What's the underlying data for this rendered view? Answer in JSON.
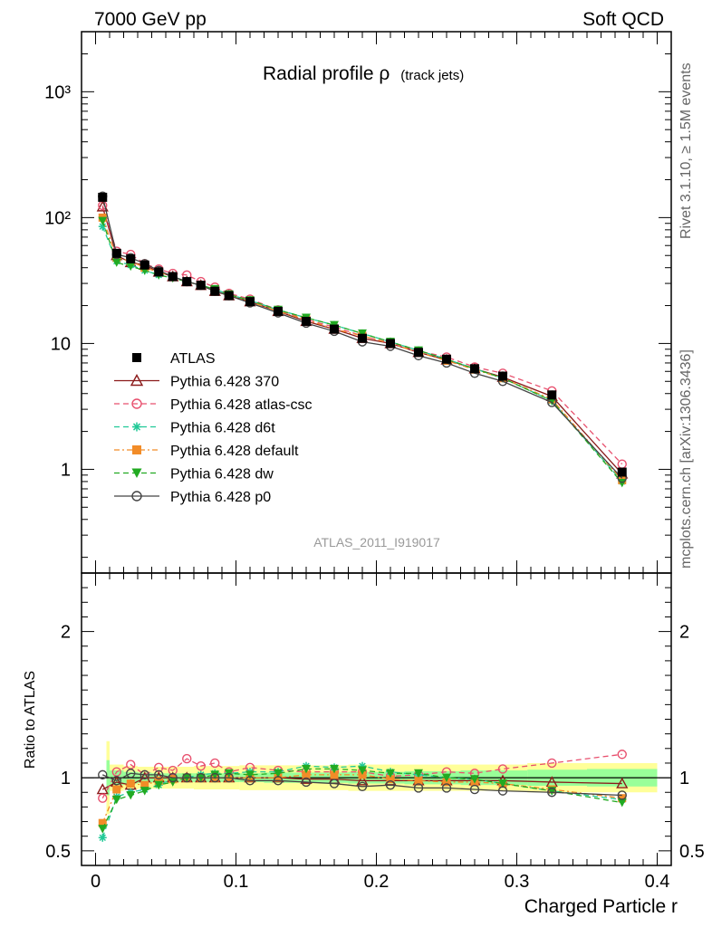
{
  "header": {
    "left": "7000 GeV pp",
    "right": "Soft QCD"
  },
  "side_text": {
    "top": "Rivet 3.1.10, ≥ 1.5M events",
    "bottom": "mcplots.cern.ch [arXiv:1306.3436]"
  },
  "chart_data": [
    {
      "type": "line",
      "title": "Radial profile ρ",
      "title_suffix": "(track jets)",
      "xlabel": "Charged Particle r",
      "ylabel": "",
      "yscale": "log",
      "ylim": [
        0.15,
        3000
      ],
      "xlim": [
        -0.01,
        0.41
      ],
      "y_tick_labels": [
        "1",
        "10",
        "10²",
        "10³"
      ],
      "watermark": "ATLAS_2011_I919017",
      "legend_position": "middle-left",
      "x": [
        0.005,
        0.015,
        0.025,
        0.035,
        0.045,
        0.055,
        0.065,
        0.075,
        0.085,
        0.095,
        0.11,
        0.13,
        0.15,
        0.17,
        0.19,
        0.21,
        0.23,
        0.25,
        0.27,
        0.29,
        0.325,
        0.375
      ],
      "series": [
        {
          "name": "ATLAS",
          "color": "#000000",
          "marker": "square",
          "dash": "none",
          "values": [
            145,
            52,
            47,
            42,
            37,
            34,
            31,
            29,
            26,
            24,
            21.5,
            18,
            15,
            13,
            11,
            10,
            8.5,
            7.5,
            6.3,
            5.5,
            3.9,
            0.95
          ]
        },
        {
          "name": "Pythia 6.428 370",
          "color": "#8b1a1a",
          "marker": "triangle-open",
          "dash": "solid",
          "values": [
            122,
            50,
            44,
            42,
            37,
            34,
            31,
            29,
            26,
            24,
            21.5,
            18,
            15,
            13,
            11,
            10,
            8.5,
            7.4,
            6.3,
            5.4,
            3.8,
            0.92
          ]
        },
        {
          "name": "Pythia 6.428 atlas-csc",
          "color": "#e8506e",
          "marker": "circle-open",
          "dash": "6,4",
          "values": [
            125,
            54,
            51,
            43,
            39,
            36,
            35,
            31,
            28,
            25,
            22.5,
            18.5,
            15.5,
            13.5,
            11.5,
            10.1,
            8.7,
            7.8,
            6.5,
            5.8,
            4.2,
            1.1
          ]
        },
        {
          "name": "Pythia 6.428 d6t",
          "color": "#20c997",
          "marker": "star",
          "dash": "6,4",
          "values": [
            85,
            45,
            42,
            38,
            35,
            34,
            31,
            29,
            27,
            24.5,
            22,
            18.5,
            16,
            14,
            12,
            10.3,
            8.8,
            7.5,
            6.3,
            5.3,
            3.5,
            0.8
          ]
        },
        {
          "name": "Pythia 6.428 default",
          "color": "#f28c28",
          "marker": "square",
          "dash": "6,3,2,3",
          "values": [
            100,
            48,
            45,
            40,
            37,
            34,
            31,
            29,
            26,
            24,
            21.5,
            18,
            15.5,
            13,
            11.5,
            10,
            8.5,
            7.3,
            6.2,
            5.3,
            3.6,
            0.82
          ]
        },
        {
          "name": "Pythia 6.428 dw",
          "color": "#22aa22",
          "marker": "triangle-down",
          "dash": "6,4",
          "values": [
            94,
            44,
            41,
            38,
            35,
            33,
            31,
            29,
            27,
            24.5,
            22,
            18.5,
            16,
            14,
            12,
            10.3,
            8.8,
            7.5,
            6.3,
            5.3,
            3.5,
            0.78
          ]
        },
        {
          "name": "Pythia 6.428 p0",
          "color": "#444444",
          "marker": "circle-open",
          "dash": "solid",
          "values": [
            148,
            51,
            48,
            43,
            38,
            34,
            31,
            29,
            26,
            24,
            21,
            17.5,
            14.5,
            12.5,
            10.3,
            9.5,
            8,
            7,
            5.8,
            5,
            3.4,
            0.85
          ]
        }
      ]
    },
    {
      "type": "line",
      "title": "",
      "xlabel": "Charged Particle r",
      "ylabel": "Ratio to ATLAS",
      "ylim": [
        0.4,
        2.4
      ],
      "xlim": [
        -0.01,
        0.41
      ],
      "x_tick_labels": [
        "0",
        "0.1",
        "0.2",
        "0.3",
        "0.4"
      ],
      "y_tick_labels": [
        "0.5",
        "1",
        "2"
      ],
      "band_stat": [
        0.12,
        0.05,
        0.04,
        0.035,
        0.03,
        0.03,
        0.03,
        0.03,
        0.03,
        0.03,
        0.03,
        0.035,
        0.035,
        0.035,
        0.04,
        0.04,
        0.045,
        0.045,
        0.05,
        0.05,
        0.055,
        0.06
      ],
      "band_total": [
        0.25,
        0.09,
        0.08,
        0.075,
        0.075,
        0.075,
        0.075,
        0.08,
        0.08,
        0.08,
        0.085,
        0.085,
        0.085,
        0.085,
        0.09,
        0.09,
        0.09,
        0.09,
        0.09,
        0.09,
        0.1,
        0.1
      ],
      "x": [
        0.005,
        0.015,
        0.025,
        0.035,
        0.045,
        0.055,
        0.065,
        0.075,
        0.085,
        0.095,
        0.11,
        0.13,
        0.15,
        0.17,
        0.19,
        0.21,
        0.23,
        0.25,
        0.27,
        0.29,
        0.325,
        0.375
      ],
      "series": [
        {
          "name": "Pythia 6.428 370",
          "color": "#8b1a1a",
          "marker": "triangle-open",
          "dash": "solid",
          "values": [
            0.92,
            0.97,
            0.95,
            1.0,
            1.0,
            1.0,
            1.0,
            1.0,
            1.0,
            1.0,
            1.0,
            1.0,
            0.99,
            0.99,
            0.98,
            0.98,
            0.98,
            0.98,
            0.98,
            0.98,
            0.97,
            0.96
          ]
        },
        {
          "name": "Pythia 6.428 atlas-csc",
          "color": "#e8506e",
          "marker": "circle-open",
          "dash": "6,4",
          "values": [
            0.86,
            1.04,
            1.09,
            1.02,
            1.07,
            1.05,
            1.13,
            1.08,
            1.1,
            1.04,
            1.07,
            1.05,
            1.04,
            1.04,
            1.04,
            1.01,
            1.02,
            1.04,
            1.03,
            1.06,
            1.1,
            1.16
          ]
        },
        {
          "name": "Pythia 6.428 d6t",
          "color": "#20c997",
          "marker": "star",
          "dash": "6,4",
          "values": [
            0.59,
            0.87,
            0.9,
            0.92,
            0.95,
            0.99,
            1.0,
            1.02,
            1.03,
            1.03,
            1.04,
            1.04,
            1.08,
            1.07,
            1.08,
            1.04,
            1.02,
            1.0,
            0.99,
            0.96,
            0.91,
            0.85
          ]
        },
        {
          "name": "Pythia 6.428 default",
          "color": "#f28c28",
          "marker": "square",
          "dash": "6,3,2,3",
          "values": [
            0.69,
            0.92,
            0.96,
            0.95,
            0.98,
            0.99,
            1.0,
            1.0,
            1.0,
            1.0,
            1.0,
            1.0,
            1.02,
            1.02,
            1.02,
            0.99,
            0.98,
            0.97,
            0.97,
            0.96,
            0.92,
            0.86
          ]
        },
        {
          "name": "Pythia 6.428 dw",
          "color": "#22aa22",
          "marker": "triangle-down",
          "dash": "6,4",
          "values": [
            0.65,
            0.85,
            0.88,
            0.91,
            0.95,
            0.97,
            1.0,
            1.0,
            1.02,
            1.03,
            1.02,
            1.03,
            1.06,
            1.06,
            1.05,
            1.03,
            1.03,
            1.0,
            0.99,
            0.96,
            0.91,
            0.83
          ]
        },
        {
          "name": "Pythia 6.428 p0",
          "color": "#444444",
          "marker": "circle-open",
          "dash": "solid",
          "values": [
            1.02,
            0.98,
            1.03,
            1.02,
            1.02,
            1.0,
            1.0,
            1.0,
            1.0,
            1.0,
            0.98,
            0.98,
            0.97,
            0.96,
            0.94,
            0.95,
            0.93,
            0.93,
            0.92,
            0.91,
            0.9,
            0.88
          ]
        }
      ]
    }
  ]
}
